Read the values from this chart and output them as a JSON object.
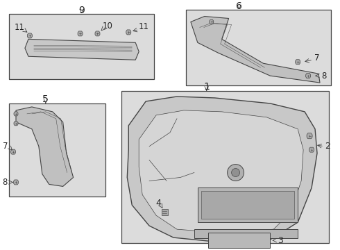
{
  "bg_color": "#ffffff",
  "line_color": "#444444",
  "box_fill": "#dcdcdc",
  "part_fill": "#cccccc",
  "part_stroke": "#555555",
  "label_fs": 9,
  "num_fs": 10
}
